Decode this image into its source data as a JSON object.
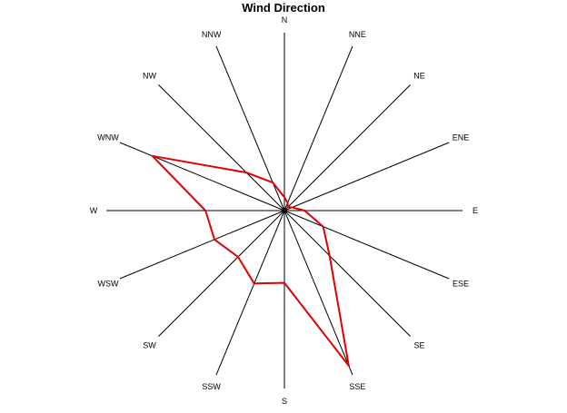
{
  "chart_data": {
    "type": "radar",
    "title": "Wind Direction",
    "categories": [
      "N",
      "NNE",
      "NE",
      "ENE",
      "E",
      "ESE",
      "SE",
      "SSE",
      "S",
      "SSW",
      "SW",
      "WSW",
      "W",
      "WNW",
      "NW",
      "NNW"
    ],
    "series": [
      {
        "values": [
          8,
          5,
          3,
          5,
          12,
          25,
          38,
          100,
          43,
          47,
          39,
          45,
          47,
          85,
          32,
          18
        ],
        "color": "#e00000"
      }
    ],
    "rlim": [
      0,
      100
    ],
    "grid": false,
    "legend": "none"
  },
  "colors": {
    "spoke": "#000000",
    "background": "#ffffff"
  }
}
